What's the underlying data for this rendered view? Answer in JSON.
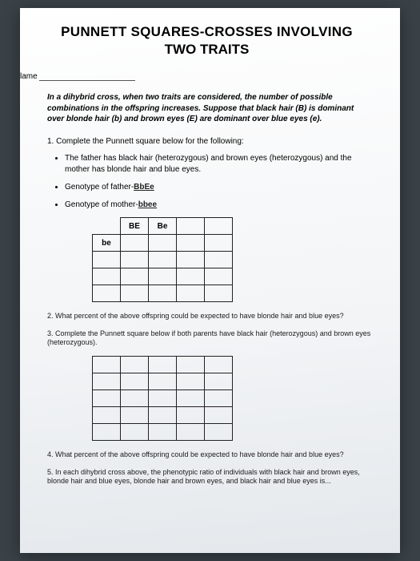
{
  "title_line1": "PUNNETT SQUARES-CROSSES INVOLVING",
  "title_line2": "TWO TRAITS",
  "name_label": "lame",
  "intro": "In a dihybrid cross, when two traits are considered, the number of possible combinations in the offspring increases. Suppose that black hair (B) is dominant over blonde hair (b) and brown eyes (E) are dominant over blue eyes (e).",
  "q1": "1. Complete the Punnett square below for the following:",
  "bullet1": "The father has black hair (heterozygous) and brown eyes (heterozygous) and the mother has blonde hair and blue eyes.",
  "bullet2_prefix": "Genotype of father-",
  "bullet2_hand": "BbEe",
  "bullet3_prefix": "Genotype of mother-",
  "bullet3_hand": "bbee",
  "table1": {
    "col_headers": [
      "BE",
      "Be",
      "",
      ""
    ],
    "row_headers": [
      "be",
      "",
      "",
      ""
    ]
  },
  "q2": "2. What percent of the above offspring could be expected to have blonde hair and blue eyes?",
  "q3": "3. Complete the Punnett square below if both parents have black hair (heterozygous) and brown eyes (heterozygous).",
  "q4": "4. What percent of the above offspring could be expected to have blonde hair and blue eyes?",
  "q5": "5. In each dihybrid cross above, the phenotypic ratio of individuals with black hair and brown eyes, blonde hair and blue eyes, blonde hair and brown eyes, and black hair and blue eyes is...",
  "colors": {
    "page_bg": "#3a4248",
    "paper_top": "#ffffff",
    "paper_bottom": "#e4e8ec",
    "text": "#000000",
    "border": "#222222"
  }
}
